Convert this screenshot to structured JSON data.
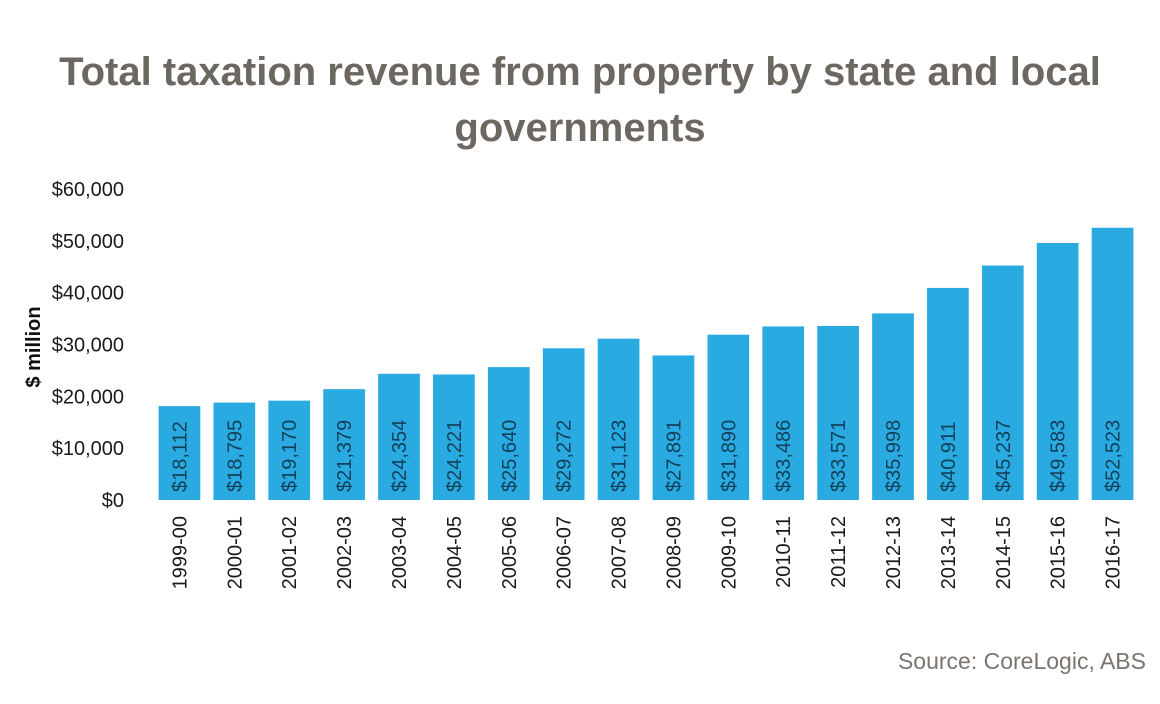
{
  "chart_data": {
    "type": "bar",
    "title_line1": "Total taxation revenue from property by state and local",
    "title_line2": "governments",
    "ylabel": "$ million",
    "xlabel": "",
    "ylim": [
      0,
      60000
    ],
    "yticks": [
      0,
      10000,
      20000,
      30000,
      40000,
      50000,
      60000
    ],
    "ytick_labels": [
      "$0",
      "$10,000",
      "$20,000",
      "$30,000",
      "$40,000",
      "$50,000",
      "$60,000"
    ],
    "grid": false,
    "categories": [
      "1999-00",
      "2000-01",
      "2001-02",
      "2002-03",
      "2003-04",
      "2004-05",
      "2005-06",
      "2006-07",
      "2007-08",
      "2008-09",
      "2009-10",
      "2010-11",
      "2011-12",
      "2012-13",
      "2013-14",
      "2014-15",
      "2015-16",
      "2016-17"
    ],
    "values": [
      18112,
      18795,
      19170,
      21379,
      24354,
      24221,
      25640,
      29272,
      31123,
      27891,
      31890,
      33486,
      33571,
      35998,
      40911,
      45237,
      49583,
      52523
    ],
    "data_labels": [
      "$18,112",
      "$18,795",
      "$19,170",
      "$21,379",
      "$24,354",
      "$24,221",
      "$25,640",
      "$29,272",
      "$31,123",
      "$27,891",
      "$31,890",
      "$33,486",
      "$33,571",
      "$35,998",
      "$40,911",
      "$45,237",
      "$49,583",
      "$52,523"
    ],
    "bar_color": "#29abe2",
    "source": "Source: CoreLogic, ABS"
  }
}
